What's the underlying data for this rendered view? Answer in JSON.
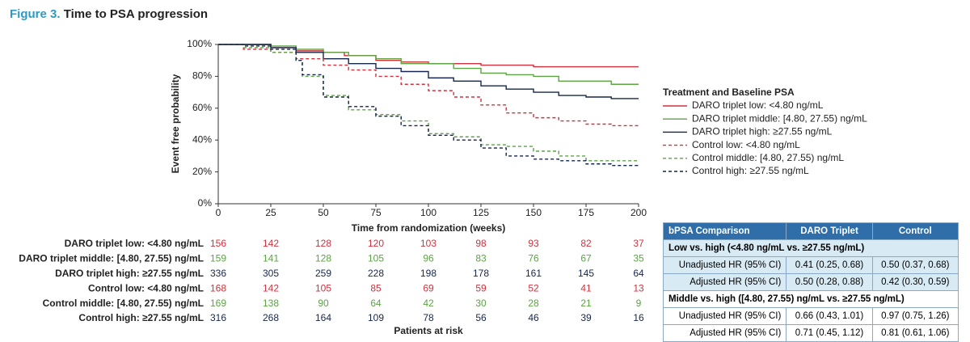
{
  "header": {
    "label": "Figure 3.",
    "title": "Time to PSA progression"
  },
  "chart_data": {
    "type": "line",
    "step": true,
    "xlabel": "Time from randomization (weeks)",
    "ylabel": "Event free probability",
    "xlim": [
      0,
      200
    ],
    "xticks": [
      0,
      25,
      50,
      75,
      100,
      125,
      150,
      175,
      200
    ],
    "ylim": [
      0,
      100
    ],
    "yticks": [
      {
        "value": 0,
        "label": "0%"
      },
      {
        "value": 20,
        "label": "20%"
      },
      {
        "value": 40,
        "label": "40%"
      },
      {
        "value": 60,
        "label": "60%"
      },
      {
        "value": 80,
        "label": "80%"
      },
      {
        "value": 100,
        "label": "100%"
      }
    ],
    "legend": {
      "title": "Treatment and Baseline PSA",
      "position": "right"
    },
    "series": [
      {
        "name": "DARO triplet low: <4.80 ng/mL",
        "color": "#d1313d",
        "dashed": false,
        "x": [
          0,
          12,
          25,
          37,
          50,
          60,
          75,
          87,
          100,
          125,
          150,
          175,
          200
        ],
        "values": [
          100,
          100,
          98,
          96,
          95,
          93,
          90,
          89,
          88,
          87,
          86,
          86,
          86
        ]
      },
      {
        "name": "DARO triplet middle: [4.80, 27.55) ng/mL",
        "color": "#5ba343",
        "dashed": false,
        "x": [
          0,
          12,
          25,
          37,
          50,
          62,
          75,
          87,
          100,
          112,
          125,
          137,
          150,
          162,
          175,
          187,
          200
        ],
        "values": [
          100,
          100,
          99,
          97,
          95,
          93,
          91,
          88,
          88,
          85,
          82,
          81,
          80,
          77,
          77,
          75,
          75
        ]
      },
      {
        "name": "DARO triplet high: ≥27.55 ng/mL",
        "color": "#16264a",
        "dashed": false,
        "x": [
          0,
          25,
          37,
          50,
          62,
          75,
          87,
          100,
          112,
          125,
          137,
          150,
          162,
          175,
          187,
          200
        ],
        "values": [
          100,
          98,
          95,
          91,
          88,
          85,
          83,
          79,
          77,
          74,
          72,
          70,
          68,
          67,
          66,
          66
        ]
      },
      {
        "name": "Control low: <4.80 ng/mL",
        "color": "#d1313d",
        "dashed": true,
        "x": [
          0,
          12,
          25,
          37,
          50,
          62,
          75,
          87,
          100,
          112,
          125,
          137,
          150,
          162,
          175,
          187,
          200
        ],
        "values": [
          100,
          97,
          95,
          91,
          87,
          84,
          80,
          75,
          71,
          67,
          62,
          57,
          54,
          52,
          50,
          49,
          49
        ]
      },
      {
        "name": "Control middle: [4.80, 27.55) ng/mL",
        "color": "#5ba343",
        "dashed": true,
        "x": [
          0,
          12,
          25,
          37,
          40,
          50,
          62,
          75,
          87,
          100,
          112,
          125,
          137,
          150,
          162,
          175,
          187,
          200
        ],
        "values": [
          100,
          98,
          95,
          90,
          80,
          68,
          59,
          56,
          52,
          44,
          42,
          37,
          36,
          33,
          30,
          27,
          27,
          27
        ]
      },
      {
        "name": "Control high: ≥27.55 ng/mL",
        "color": "#16264a",
        "dashed": true,
        "x": [
          0,
          12,
          25,
          37,
          40,
          50,
          62,
          75,
          87,
          100,
          112,
          125,
          137,
          150,
          162,
          175,
          187,
          200
        ],
        "values": [
          100,
          99,
          97,
          90,
          81,
          67,
          61,
          55,
          49,
          43,
          40,
          35,
          30,
          28,
          27,
          25,
          24,
          23
        ]
      }
    ]
  },
  "risk_table": {
    "title": "Patients at risk",
    "rows": [
      {
        "label": "DARO triplet low: <4.80 ng/mL",
        "values": [
          156,
          142,
          128,
          120,
          103,
          98,
          93,
          82,
          37
        ]
      },
      {
        "label": "DARO triplet middle: [4.80, 27.55) ng/mL",
        "values": [
          159,
          141,
          128,
          105,
          96,
          83,
          76,
          67,
          35
        ]
      },
      {
        "label": "DARO triplet high: ≥27.55 ng/mL",
        "values": [
          336,
          305,
          259,
          228,
          198,
          178,
          161,
          145,
          64
        ]
      },
      {
        "label": "Control low: <4.80 ng/mL",
        "values": [
          168,
          142,
          105,
          85,
          69,
          59,
          52,
          41,
          13
        ]
      },
      {
        "label": "Control middle: [4.80, 27.55) ng/mL",
        "values": [
          169,
          138,
          90,
          64,
          42,
          30,
          28,
          21,
          9
        ]
      },
      {
        "label": "Control high: ≥27.55 ng/mL",
        "values": [
          316,
          268,
          164,
          109,
          78,
          56,
          46,
          39,
          16
        ]
      }
    ]
  },
  "hr_table": {
    "header": [
      "bPSA Comparison",
      "DARO Triplet",
      "Control"
    ],
    "groups": [
      {
        "title": "Low vs. high (<4.80 ng/mL vs. ≥27.55 ng/mL)",
        "rows": [
          [
            "Unadjusted HR (95% CI)",
            "0.41 (0.25, 0.68)",
            "0.50 (0.37, 0.68)"
          ],
          [
            "Adjusted HR (95% CI)",
            "0.50 (0.28, 0.88)",
            "0.42 (0.30, 0.59)"
          ]
        ]
      },
      {
        "title": "Middle vs. high ([4.80, 27.55) ng/mL vs. ≥27.55 ng/mL)",
        "rows": [
          [
            "Unadjusted HR (95% CI)",
            "0.66 (0.43, 1.01)",
            "0.97 (0.75, 1.26)"
          ],
          [
            "Adjusted HR (95% CI)",
            "0.71 (0.45, 1.12)",
            "0.81 (0.61, 1.06)"
          ]
        ]
      }
    ]
  }
}
